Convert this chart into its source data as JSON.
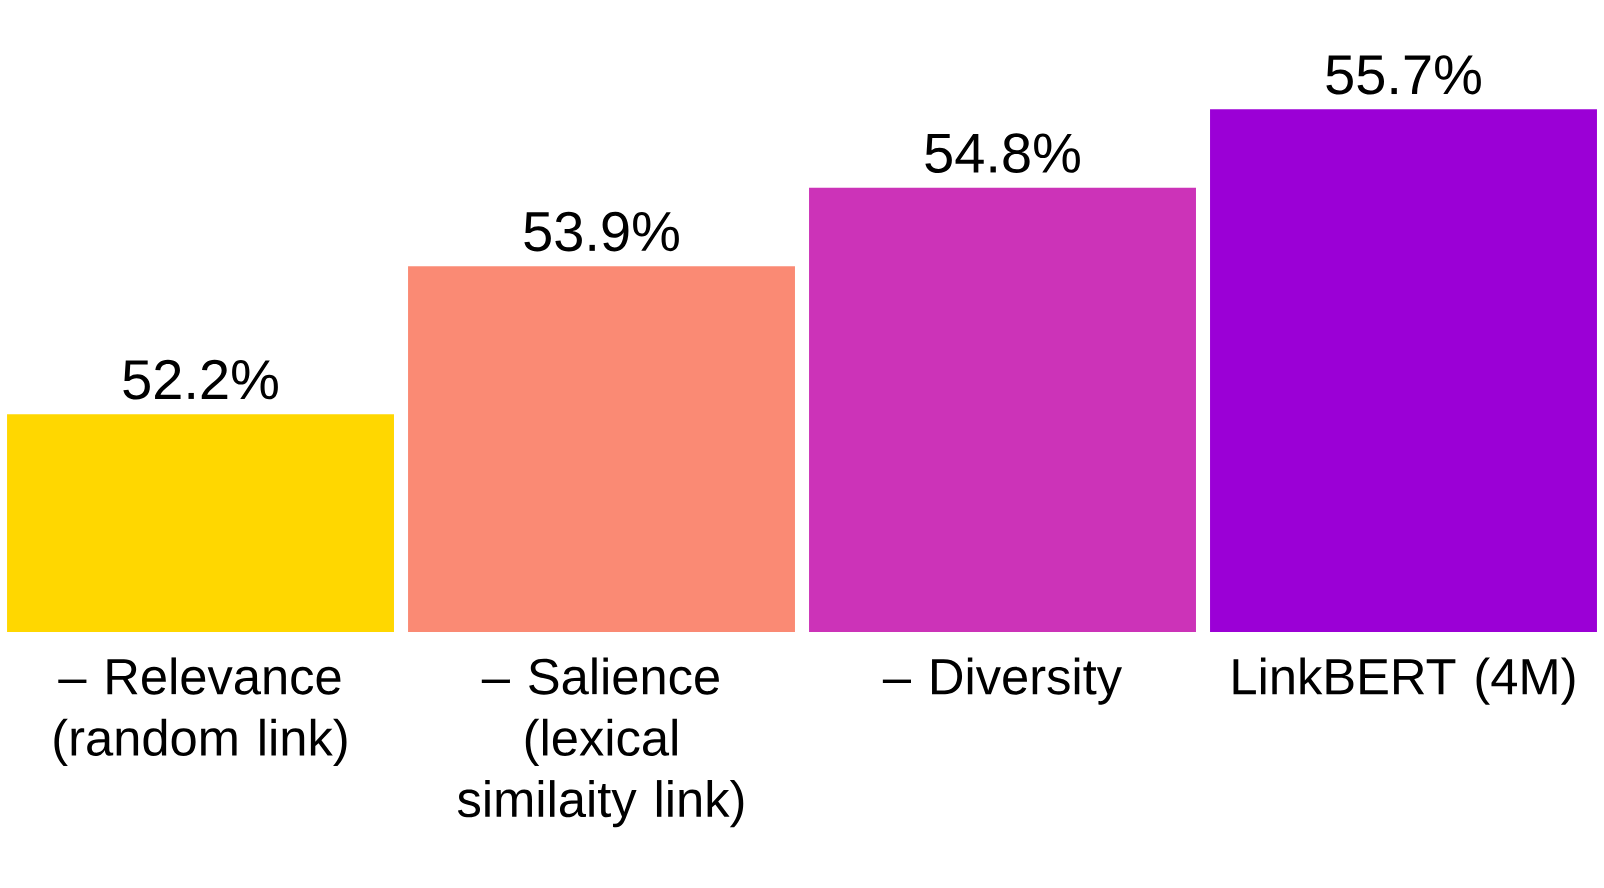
{
  "chart_data": {
    "type": "bar",
    "categories": [
      "– Relevance (random link)",
      "– Salience (lexical similaity link)",
      "– Diversity",
      "LinkBERT (4M)"
    ],
    "values": [
      52.2,
      53.9,
      54.8,
      55.7
    ],
    "colors": [
      "#ffd700",
      "#fa8a74",
      "#cc33b8",
      "#9b00d6"
    ],
    "value_labels": [
      "52.2%",
      "53.9%",
      "54.8%",
      "55.7%"
    ],
    "ylim": [
      49.7,
      55.7
    ]
  }
}
